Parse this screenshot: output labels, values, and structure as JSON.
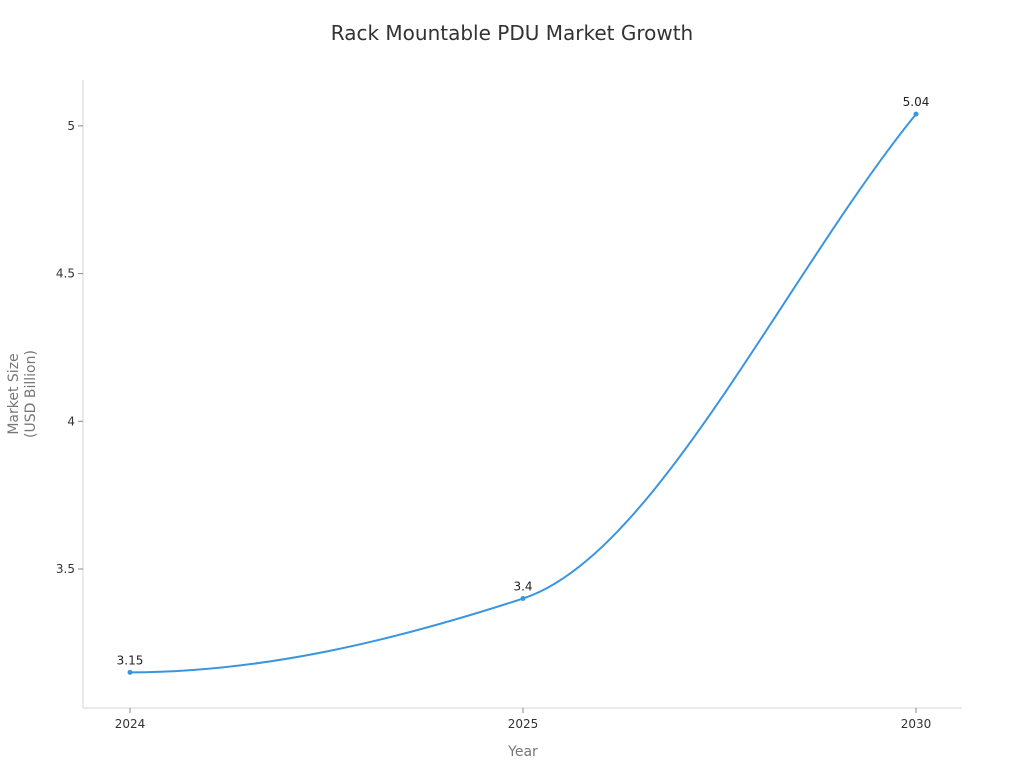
{
  "chart_data": {
    "type": "line",
    "title": "Rack Mountable PDU Market Growth",
    "xlabel": "Year",
    "ylabel_lines": [
      "Market Size",
      "(USD Billion)"
    ],
    "categories": [
      "2024",
      "2025",
      "2030"
    ],
    "series": [
      {
        "name": "Market Size",
        "values": [
          3.15,
          3.4,
          5.04
        ],
        "color": "#3a95e0"
      }
    ],
    "data_labels": [
      "3.15",
      "3.4",
      "5.04"
    ],
    "yticks": [
      3.5,
      4,
      4.5,
      5
    ],
    "ytick_labels": [
      "3.5",
      "4",
      "4.5",
      "5"
    ],
    "ylim": [
      3.03,
      5.156
    ],
    "grid": false,
    "legend": "none",
    "curve": "smooth"
  },
  "colors": {
    "line": "#3a95e0",
    "axis": "#d6d6d6",
    "title": "#333333",
    "axis_title": "#777777"
  }
}
